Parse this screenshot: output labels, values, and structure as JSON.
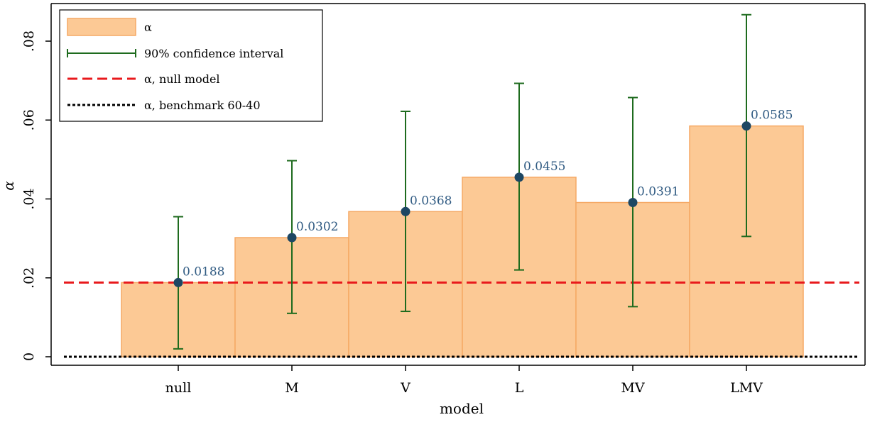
{
  "chart_data": {
    "type": "bar",
    "title": "",
    "xlabel": "model",
    "ylabel": "α",
    "categories": [
      "null",
      "M",
      "V",
      "L",
      "MV",
      "LMV"
    ],
    "values": [
      0.0188,
      0.0302,
      0.0368,
      0.0455,
      0.0391,
      0.0585
    ],
    "value_labels": [
      "0.0188",
      "0.0302",
      "0.0368",
      "0.0455",
      "0.0391",
      "0.0585"
    ],
    "ci_lower": [
      0.002,
      0.011,
      0.0115,
      0.022,
      0.0127,
      0.0305
    ],
    "ci_upper": [
      0.0355,
      0.0497,
      0.0622,
      0.0693,
      0.0657,
      0.0867
    ],
    "reference_lines": [
      {
        "label": "α, null model",
        "value": 0.0188,
        "style": "dashed",
        "color": "#e8191c"
      },
      {
        "label": "α, benchmark 60-40",
        "value": 0.0,
        "style": "dotted",
        "color": "#000000"
      }
    ],
    "ylim": [
      -0.002,
      0.089
    ],
    "yticks": [
      0,
      0.02,
      0.04,
      0.06,
      0.08
    ],
    "ytick_labels": [
      "0",
      ".02",
      ".04",
      ".06",
      ".08"
    ],
    "grid": false,
    "legend_position": "top-left",
    "legend": [
      {
        "label": "α",
        "kind": "bar"
      },
      {
        "label": "90% confidence interval",
        "kind": "errorbar"
      },
      {
        "label": "α, null model",
        "kind": "dashed-line"
      },
      {
        "label": "α, benchmark 60-40",
        "kind": "dotted-line"
      }
    ],
    "colors": {
      "bar_fill": "#fcc995",
      "bar_stroke": "#f5a965",
      "point": "#1d4763",
      "errorbar": "#1e6b1e",
      "data_label": "#2f5a82",
      "null_line": "#e8191c",
      "benchmark_line": "#000000"
    }
  }
}
